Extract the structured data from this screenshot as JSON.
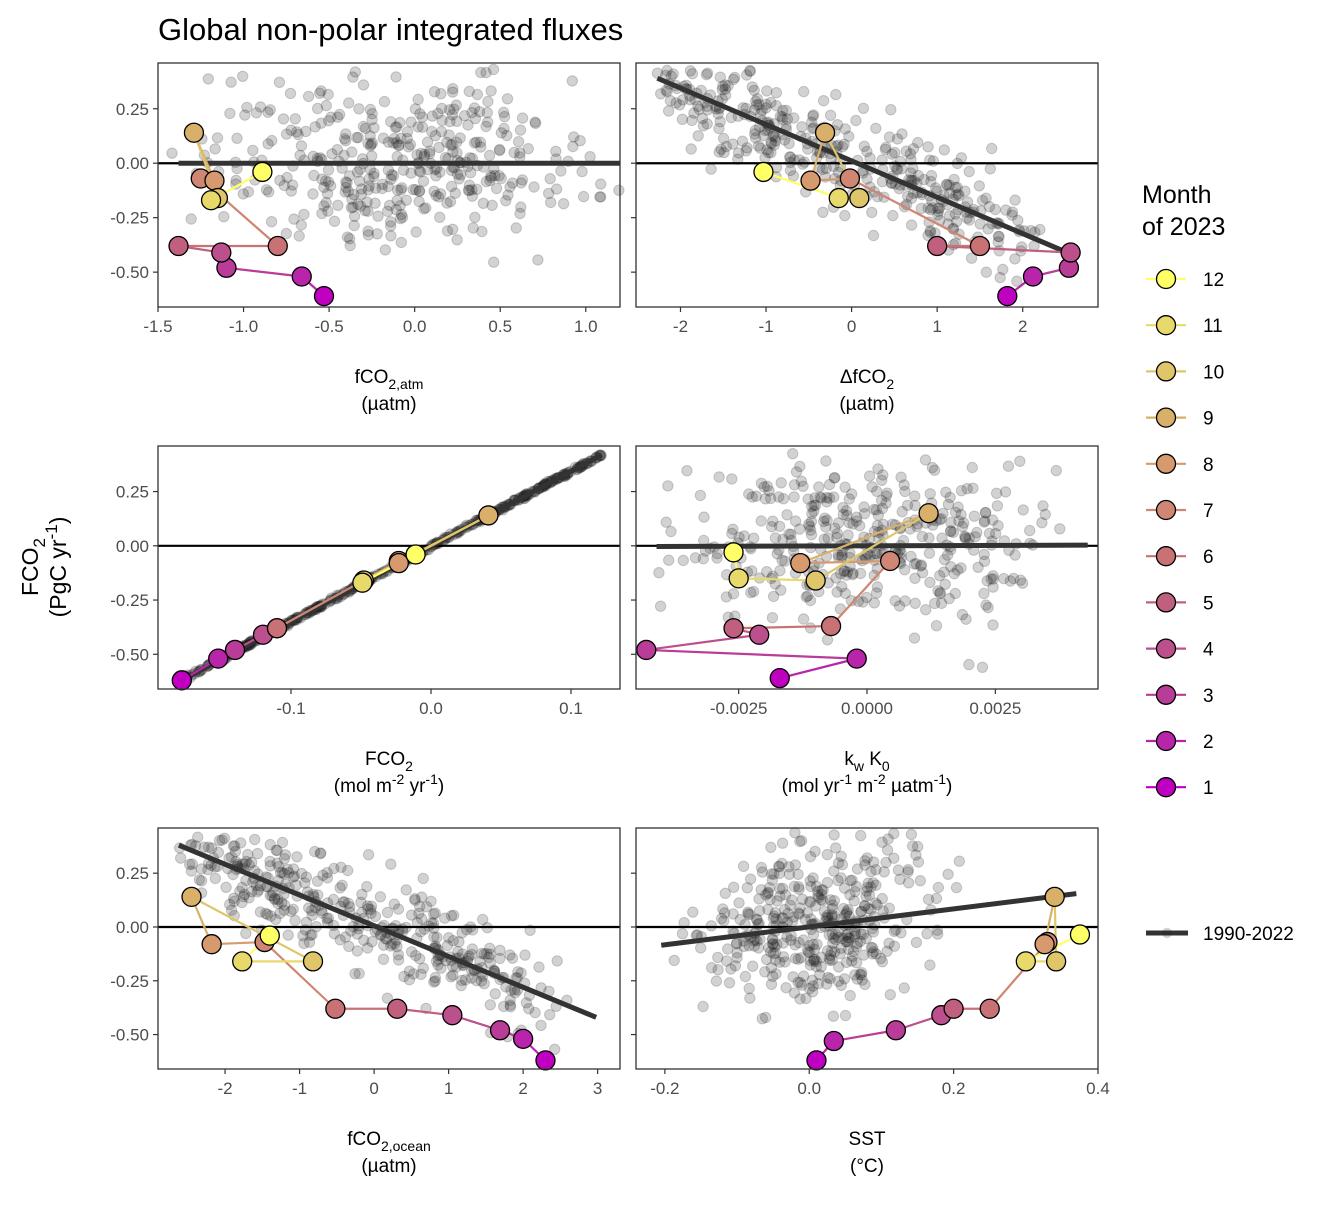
{
  "title": "Global non-polar integrated fluxes",
  "y_label": {
    "line1": "FCO",
    "line1_sub": "2",
    "line2_pre": "(PgC yr",
    "line2_sup": "-1",
    "line2_post": ")"
  },
  "y_ticks": [
    "0.25",
    "0.00",
    "-0.25",
    "-0.50"
  ],
  "y_range": [
    -0.66,
    0.46
  ],
  "legend": {
    "title_line1": "Month",
    "title_line2": "of 2023",
    "months": [
      "12",
      "11",
      "10",
      "9",
      "8",
      "7",
      "6",
      "5",
      "4",
      "3",
      "2",
      "1"
    ],
    "colors": {
      "1": "#c000c0",
      "2": "#b824aa",
      "3": "#b83c98",
      "4": "#bb508c",
      "5": "#c0607e",
      "6": "#c87276",
      "7": "#cf8672",
      "8": "#d69a6e",
      "9": "#d9b06a",
      "10": "#dfc66a",
      "11": "#e8da6a",
      "12": "#ffff66"
    },
    "baseline_label": "1990-2022"
  },
  "chart_data": [
    {
      "type": "scatter",
      "xlabel": "fCO",
      "xlabel_sub": "2,atm",
      "xunit": "(µatm)",
      "xlim": [
        -1.5,
        1.2
      ],
      "xticks": [
        -1.5,
        -1.0,
        -0.5,
        0.0,
        0.5,
        1.0
      ],
      "xtick_labels": [
        "-1.5",
        "-1.0",
        "-0.5",
        "0.0",
        "0.5",
        "1.0"
      ],
      "scatter_x_range": [
        -1.42,
        1.2
      ],
      "fit": {
        "x": [
          -1.38,
          1.2
        ],
        "y": [
          0.0,
          0.0
        ]
      },
      "months_2023": {
        "x": [
          -0.53,
          -0.66,
          -1.1,
          -1.13,
          -1.38,
          -0.8,
          -1.25,
          -1.17,
          -1.29,
          -1.15,
          -1.19,
          -0.89
        ],
        "y": [
          -0.61,
          -0.52,
          -0.48,
          -0.41,
          -0.38,
          -0.38,
          -0.07,
          -0.08,
          0.14,
          -0.16,
          -0.17,
          -0.04
        ]
      }
    },
    {
      "type": "scatter",
      "xlabel": "ΔfCO",
      "xlabel_sub": "2",
      "xunit": "(µatm)",
      "xlim": [
        -2.52,
        2.88
      ],
      "xticks": [
        -2,
        -1,
        0,
        1,
        2
      ],
      "xtick_labels": [
        "-2",
        "-1",
        "0",
        "1",
        "2"
      ],
      "scatter_x_range": [
        -2.3,
        2.75
      ],
      "fit": {
        "x": [
          -2.27,
          2.58
        ],
        "y": [
          0.39,
          -0.42
        ]
      },
      "months_2023": {
        "x": [
          1.82,
          2.12,
          2.54,
          2.56,
          1.0,
          1.5,
          -0.02,
          -0.48,
          -0.31,
          0.09,
          -0.15,
          -1.03
        ],
        "y": [
          -0.61,
          -0.52,
          -0.48,
          -0.41,
          -0.38,
          -0.38,
          -0.07,
          -0.08,
          0.14,
          -0.16,
          -0.16,
          -0.04
        ]
      }
    },
    {
      "type": "scatter",
      "xlabel": "FCO",
      "xlabel_sub": "2",
      "xunit_pre": "(mol m",
      "xunit_sup": "-2",
      "xunit_post": " yr",
      "xunit_sup2": "-1",
      "xunit_end": ")",
      "xlim": [
        -0.195,
        0.135
      ],
      "xticks": [
        -0.1,
        0.0,
        0.1
      ],
      "xtick_labels": [
        "-0.1",
        "0.0",
        "0.1"
      ],
      "scatter_x_range": [
        -0.178,
        0.122
      ],
      "fit": {
        "x": [
          -0.178,
          0.122
        ],
        "y": [
          -0.62,
          0.42
        ]
      },
      "months_2023": {
        "x": [
          -0.178,
          -0.152,
          -0.14,
          -0.12,
          -0.11,
          -0.11,
          -0.023,
          -0.023,
          0.041,
          -0.048,
          -0.049,
          -0.011
        ],
        "y": [
          -0.62,
          -0.52,
          -0.48,
          -0.41,
          -0.38,
          -0.38,
          -0.07,
          -0.08,
          0.14,
          -0.16,
          -0.17,
          -0.04
        ]
      }
    },
    {
      "type": "scatter",
      "xlabel": "k",
      "xlabel_sub": "w",
      "xlabel_b": " K",
      "xlabel_sub_b": "0",
      "xunit_pre": "(mol yr",
      "xunit_sup": "-1",
      "xunit_post": " m",
      "xunit_sup2": "-2",
      "xunit_mid": " µatm",
      "xunit_sup3": "-1",
      "xunit_end": ")",
      "xlim": [
        -0.0045,
        0.0045
      ],
      "xticks": [
        -0.0025,
        0.0,
        0.0025
      ],
      "xtick_labels": [
        "-0.0025",
        "0.0000",
        "0.0025"
      ],
      "scatter_x_range": [
        -0.0042,
        0.0043
      ],
      "fit": {
        "x": [
          -0.0041,
          0.0043
        ],
        "y": [
          -0.003,
          0.003
        ]
      },
      "months_2023": {
        "x": [
          -0.0017,
          -0.0002,
          -0.0043,
          -0.0021,
          -0.0026,
          -0.0007,
          0.00045,
          -0.0013,
          0.0012,
          -0.001,
          -0.0025,
          -0.0026
        ],
        "y": [
          -0.61,
          -0.52,
          -0.48,
          -0.41,
          -0.38,
          -0.37,
          -0.07,
          -0.08,
          0.15,
          -0.16,
          -0.15,
          -0.03
        ]
      }
    },
    {
      "type": "scatter",
      "xlabel": "fCO",
      "xlabel_sub": "2,ocean",
      "xunit": "(µatm)",
      "xlim": [
        -2.9,
        3.3
      ],
      "xticks": [
        -2,
        -1,
        0,
        1,
        2,
        3
      ],
      "xtick_labels": [
        "-2",
        "-1",
        "0",
        "1",
        "2",
        "3"
      ],
      "scatter_x_range": [
        -2.62,
        2.98
      ],
      "fit": {
        "x": [
          -2.62,
          2.98
        ],
        "y": [
          0.38,
          -0.42
        ]
      },
      "months_2023": {
        "x": [
          2.3,
          2.0,
          1.69,
          1.05,
          0.31,
          -0.52,
          -1.47,
          -2.18,
          -2.45,
          -0.82,
          -1.77,
          -1.4
        ],
        "y": [
          -0.62,
          -0.52,
          -0.48,
          -0.41,
          -0.38,
          -0.38,
          -0.07,
          -0.08,
          0.14,
          -0.16,
          -0.16,
          -0.04
        ]
      }
    },
    {
      "type": "scatter",
      "xlabel": "SST",
      "xlabel_sub": "",
      "xunit": "(°C)",
      "xlim": [
        -0.24,
        0.4
      ],
      "xticks": [
        -0.2,
        0.0,
        0.2,
        0.4
      ],
      "xtick_labels": [
        "-0.2",
        "0.0",
        "0.2",
        "0.4"
      ],
      "scatter_x_range": [
        -0.21,
        0.33
      ],
      "fit": {
        "x": [
          -0.205,
          0.37
        ],
        "y": [
          -0.085,
          0.155
        ]
      },
      "months_2023": {
        "x": [
          0.01,
          0.034,
          0.12,
          0.183,
          0.2,
          0.25,
          0.33,
          0.326,
          0.34,
          0.342,
          0.3,
          0.375
        ],
        "y": [
          -0.62,
          -0.53,
          -0.48,
          -0.41,
          -0.38,
          -0.38,
          -0.07,
          -0.08,
          0.14,
          -0.16,
          -0.16,
          -0.035
        ]
      }
    }
  ]
}
